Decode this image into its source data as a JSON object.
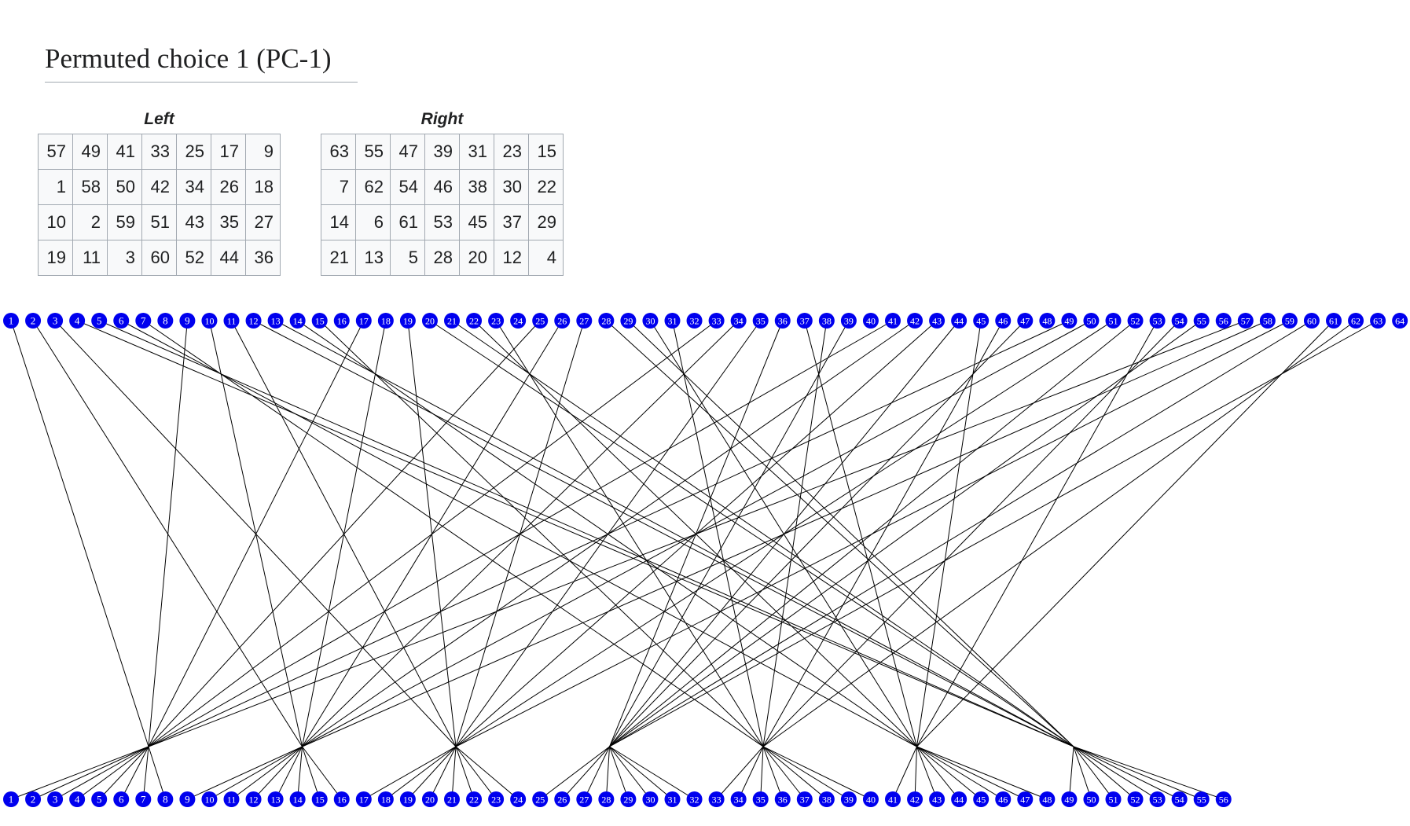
{
  "heading": "Permuted choice 1 (PC-1)",
  "tables": {
    "left": {
      "caption": "Left",
      "rows": [
        [
          57,
          49,
          41,
          33,
          25,
          17,
          9
        ],
        [
          1,
          58,
          50,
          42,
          34,
          26,
          18
        ],
        [
          10,
          2,
          59,
          51,
          43,
          35,
          27
        ],
        [
          19,
          11,
          3,
          60,
          52,
          44,
          36
        ]
      ]
    },
    "right": {
      "caption": "Right",
      "rows": [
        [
          63,
          55,
          47,
          39,
          31,
          23,
          15
        ],
        [
          7,
          62,
          54,
          46,
          38,
          30,
          22
        ],
        [
          14,
          6,
          61,
          53,
          45,
          37,
          29
        ],
        [
          21,
          13,
          5,
          28,
          20,
          12,
          4
        ]
      ]
    }
  },
  "diagram": {
    "input_bits": [
      1,
      2,
      3,
      4,
      5,
      6,
      7,
      8,
      9,
      10,
      11,
      12,
      13,
      14,
      15,
      16,
      17,
      18,
      19,
      20,
      21,
      22,
      23,
      24,
      25,
      26,
      27,
      28,
      29,
      30,
      31,
      32,
      33,
      34,
      35,
      36,
      37,
      38,
      39,
      40,
      41,
      42,
      43,
      44,
      45,
      46,
      47,
      48,
      49,
      50,
      51,
      52,
      53,
      54,
      55,
      56,
      57,
      58,
      59,
      60,
      61,
      62,
      63,
      64
    ],
    "output_bits": [
      1,
      2,
      3,
      4,
      5,
      6,
      7,
      8,
      9,
      10,
      11,
      12,
      13,
      14,
      15,
      16,
      17,
      18,
      19,
      20,
      21,
      22,
      23,
      24,
      25,
      26,
      27,
      28,
      29,
      30,
      31,
      32,
      33,
      34,
      35,
      36,
      37,
      38,
      39,
      40,
      41,
      42,
      43,
      44,
      45,
      46,
      47,
      48,
      49,
      50,
      51,
      52,
      53,
      54,
      55,
      56
    ],
    "node_color": "#0000ee",
    "node_text_color": "#ffffff",
    "line_color": "#000000"
  }
}
